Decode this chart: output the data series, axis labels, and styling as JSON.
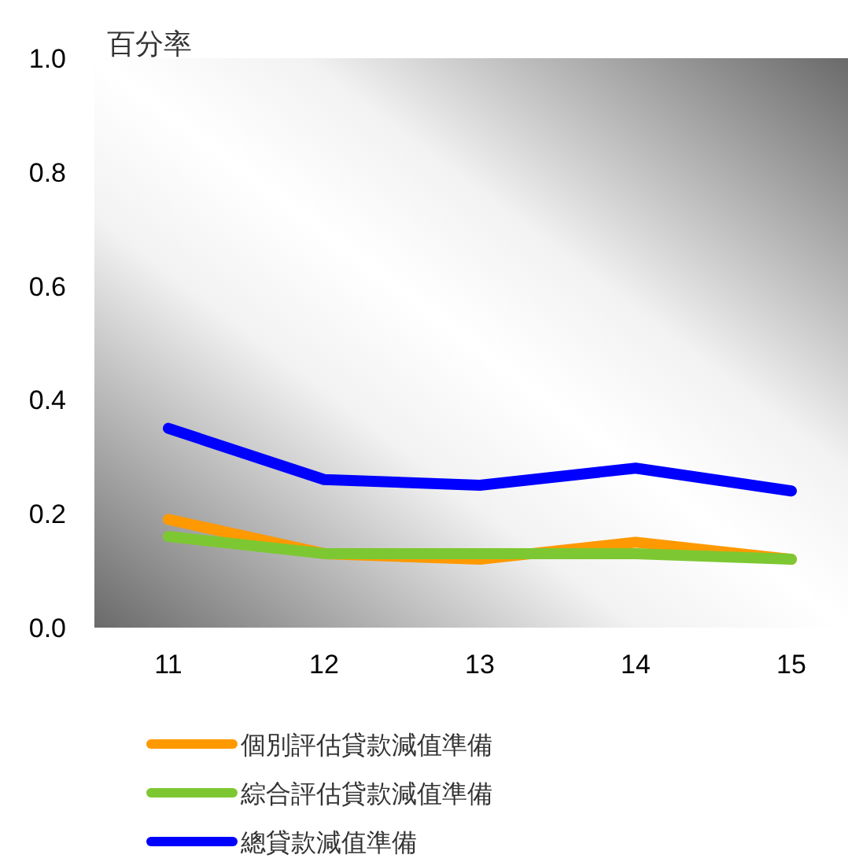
{
  "chart_data": {
    "type": "line",
    "ylabel": "百分率",
    "categories": [
      "11",
      "12",
      "13",
      "14",
      "15"
    ],
    "series": [
      {
        "name": "個別評估貸款減值準備",
        "color": "#ff9900",
        "values": [
          0.19,
          0.13,
          0.12,
          0.15,
          0.12
        ]
      },
      {
        "name": "綜合評估貸款減值準備",
        "color": "#7dc832",
        "values": [
          0.16,
          0.13,
          0.13,
          0.13,
          0.12
        ]
      },
      {
        "name": "總貸款減值準備",
        "color": "#0000ff",
        "values": [
          0.35,
          0.26,
          0.25,
          0.28,
          0.24
        ]
      }
    ],
    "ylim": [
      0,
      1
    ],
    "yticks": [
      {
        "value": 0,
        "label": "0.0"
      },
      {
        "value": 0.2,
        "label": "0.2"
      },
      {
        "value": 0.4,
        "label": "0.4"
      },
      {
        "value": 0.6,
        "label": "0.6"
      },
      {
        "value": 0.8,
        "label": "0.8"
      },
      {
        "value": 1,
        "label": "1.0"
      }
    ],
    "legend": "bottom",
    "line_style": "solid"
  }
}
